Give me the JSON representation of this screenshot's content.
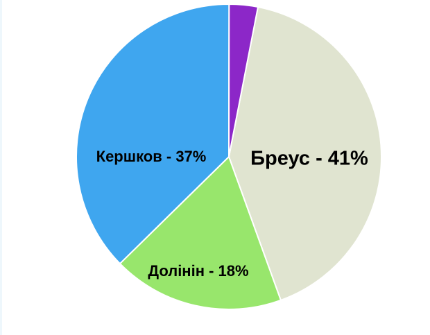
{
  "chart_data": {
    "type": "pie",
    "title": "",
    "slices": [
      {
        "label": "Бреус - 41%",
        "value": 41,
        "color": "#e0e4d0"
      },
      {
        "label": "Долінін - 18%",
        "value": 18,
        "color": "#98e66c"
      },
      {
        "label": "Кершков - 37%",
        "value": 37,
        "color": "#3fa6ef"
      },
      {
        "label": "",
        "value": 3,
        "color": "#8c27c8"
      }
    ],
    "start_angle_deg": 11,
    "direction": "clockwise",
    "legend": "none"
  }
}
